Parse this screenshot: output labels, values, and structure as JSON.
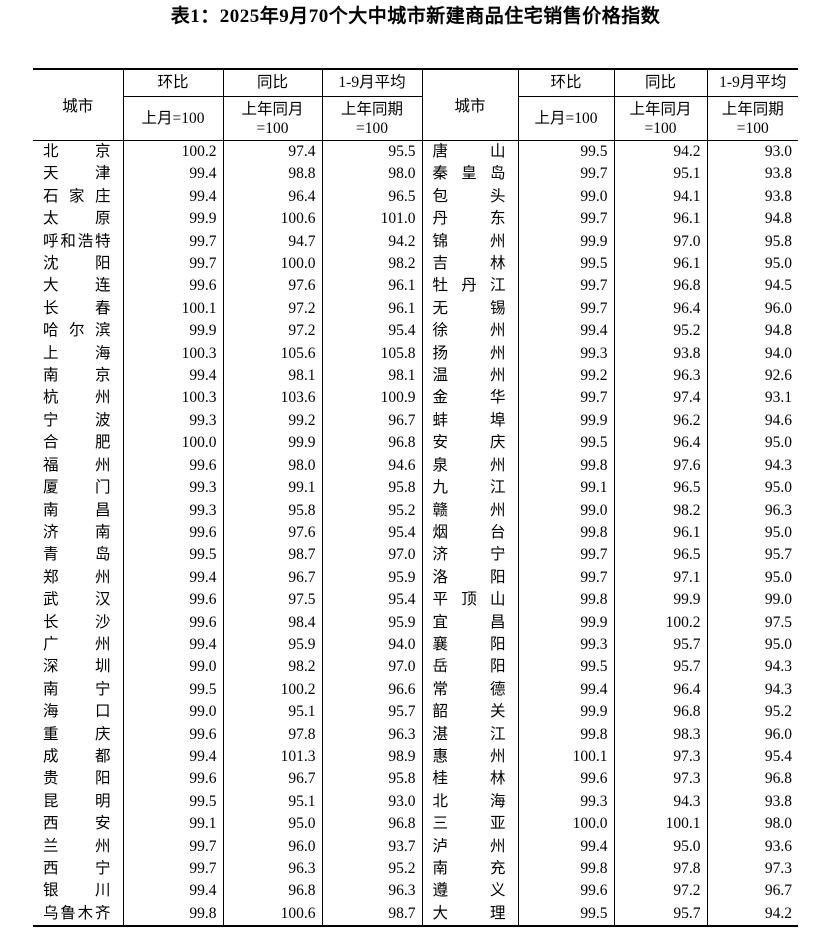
{
  "page": {
    "title": "表1：2025年9月70个大中城市新建商品住宅销售价格指数"
  },
  "table": {
    "header": {
      "city_label": "城市",
      "columns": [
        {
          "group": "环比",
          "base_line1": "上月=100",
          "base_line2": ""
        },
        {
          "group": "同比",
          "base_line1": "上年同月",
          "base_line2": "=100"
        },
        {
          "group": "1-9月平均",
          "base_line1": "上年同期",
          "base_line2": "=100"
        }
      ]
    },
    "left_rows": [
      {
        "city": "北京",
        "mom": "100.2",
        "yoy": "97.4",
        "avg": "95.5"
      },
      {
        "city": "天津",
        "mom": "99.4",
        "yoy": "98.8",
        "avg": "98.0"
      },
      {
        "city": "石家庄",
        "mom": "99.4",
        "yoy": "96.4",
        "avg": "96.5"
      },
      {
        "city": "太原",
        "mom": "99.9",
        "yoy": "100.6",
        "avg": "101.0"
      },
      {
        "city": "呼和浩特",
        "mom": "99.7",
        "yoy": "94.7",
        "avg": "94.2"
      },
      {
        "city": "沈阳",
        "mom": "99.7",
        "yoy": "100.0",
        "avg": "98.2"
      },
      {
        "city": "大连",
        "mom": "99.6",
        "yoy": "97.6",
        "avg": "96.1"
      },
      {
        "city": "长春",
        "mom": "100.1",
        "yoy": "97.2",
        "avg": "96.1"
      },
      {
        "city": "哈尔滨",
        "mom": "99.9",
        "yoy": "97.2",
        "avg": "95.4"
      },
      {
        "city": "上海",
        "mom": "100.3",
        "yoy": "105.6",
        "avg": "105.8"
      },
      {
        "city": "南京",
        "mom": "99.4",
        "yoy": "98.1",
        "avg": "98.1"
      },
      {
        "city": "杭州",
        "mom": "100.3",
        "yoy": "103.6",
        "avg": "100.9"
      },
      {
        "city": "宁波",
        "mom": "99.3",
        "yoy": "99.2",
        "avg": "96.7"
      },
      {
        "city": "合肥",
        "mom": "100.0",
        "yoy": "99.9",
        "avg": "96.8"
      },
      {
        "city": "福州",
        "mom": "99.6",
        "yoy": "98.0",
        "avg": "94.6"
      },
      {
        "city": "厦门",
        "mom": "99.3",
        "yoy": "99.1",
        "avg": "95.8"
      },
      {
        "city": "南昌",
        "mom": "99.3",
        "yoy": "95.8",
        "avg": "95.2"
      },
      {
        "city": "济南",
        "mom": "99.6",
        "yoy": "97.6",
        "avg": "95.4"
      },
      {
        "city": "青岛",
        "mom": "99.5",
        "yoy": "98.7",
        "avg": "97.0"
      },
      {
        "city": "郑州",
        "mom": "99.4",
        "yoy": "96.7",
        "avg": "95.9"
      },
      {
        "city": "武汉",
        "mom": "99.6",
        "yoy": "97.5",
        "avg": "95.4"
      },
      {
        "city": "长沙",
        "mom": "99.6",
        "yoy": "98.4",
        "avg": "95.9"
      },
      {
        "city": "广州",
        "mom": "99.4",
        "yoy": "95.9",
        "avg": "94.0"
      },
      {
        "city": "深圳",
        "mom": "99.0",
        "yoy": "98.2",
        "avg": "97.0"
      },
      {
        "city": "南宁",
        "mom": "99.5",
        "yoy": "100.2",
        "avg": "96.6"
      },
      {
        "city": "海口",
        "mom": "99.0",
        "yoy": "95.1",
        "avg": "95.7"
      },
      {
        "city": "重庆",
        "mom": "99.6",
        "yoy": "97.8",
        "avg": "96.3"
      },
      {
        "city": "成都",
        "mom": "99.4",
        "yoy": "101.3",
        "avg": "98.9"
      },
      {
        "city": "贵阳",
        "mom": "99.6",
        "yoy": "96.7",
        "avg": "95.8"
      },
      {
        "city": "昆明",
        "mom": "99.5",
        "yoy": "95.1",
        "avg": "93.0"
      },
      {
        "city": "西安",
        "mom": "99.1",
        "yoy": "95.0",
        "avg": "96.8"
      },
      {
        "city": "兰州",
        "mom": "99.7",
        "yoy": "96.0",
        "avg": "93.7"
      },
      {
        "city": "西宁",
        "mom": "99.7",
        "yoy": "96.3",
        "avg": "95.2"
      },
      {
        "city": "银川",
        "mom": "99.4",
        "yoy": "96.8",
        "avg": "96.3"
      },
      {
        "city": "乌鲁木齐",
        "mom": "99.8",
        "yoy": "100.6",
        "avg": "98.7"
      }
    ],
    "right_rows": [
      {
        "city": "唐山",
        "mom": "99.5",
        "yoy": "94.2",
        "avg": "93.0"
      },
      {
        "city": "秦皇岛",
        "mom": "99.7",
        "yoy": "95.1",
        "avg": "93.8"
      },
      {
        "city": "包头",
        "mom": "99.0",
        "yoy": "94.1",
        "avg": "93.8"
      },
      {
        "city": "丹东",
        "mom": "99.7",
        "yoy": "96.1",
        "avg": "94.8"
      },
      {
        "city": "锦州",
        "mom": "99.9",
        "yoy": "97.0",
        "avg": "95.8"
      },
      {
        "city": "吉林",
        "mom": "99.5",
        "yoy": "96.1",
        "avg": "95.0"
      },
      {
        "city": "牡丹江",
        "mom": "99.7",
        "yoy": "96.8",
        "avg": "94.5"
      },
      {
        "city": "无锡",
        "mom": "99.7",
        "yoy": "96.4",
        "avg": "96.0"
      },
      {
        "city": "徐州",
        "mom": "99.4",
        "yoy": "95.2",
        "avg": "94.8"
      },
      {
        "city": "扬州",
        "mom": "99.3",
        "yoy": "93.8",
        "avg": "94.0"
      },
      {
        "city": "温州",
        "mom": "99.2",
        "yoy": "96.3",
        "avg": "92.6"
      },
      {
        "city": "金华",
        "mom": "99.7",
        "yoy": "97.4",
        "avg": "93.1"
      },
      {
        "city": "蚌埠",
        "mom": "99.9",
        "yoy": "96.2",
        "avg": "94.6"
      },
      {
        "city": "安庆",
        "mom": "99.5",
        "yoy": "96.4",
        "avg": "95.0"
      },
      {
        "city": "泉州",
        "mom": "99.8",
        "yoy": "97.6",
        "avg": "94.3"
      },
      {
        "city": "九江",
        "mom": "99.1",
        "yoy": "96.5",
        "avg": "95.0"
      },
      {
        "city": "赣州",
        "mom": "99.0",
        "yoy": "98.2",
        "avg": "96.3"
      },
      {
        "city": "烟台",
        "mom": "99.8",
        "yoy": "96.1",
        "avg": "95.0"
      },
      {
        "city": "济宁",
        "mom": "99.7",
        "yoy": "96.5",
        "avg": "95.7"
      },
      {
        "city": "洛阳",
        "mom": "99.7",
        "yoy": "97.1",
        "avg": "95.0"
      },
      {
        "city": "平顶山",
        "mom": "99.8",
        "yoy": "99.9",
        "avg": "99.0"
      },
      {
        "city": "宜昌",
        "mom": "99.9",
        "yoy": "100.2",
        "avg": "97.5"
      },
      {
        "city": "襄阳",
        "mom": "99.3",
        "yoy": "95.7",
        "avg": "95.0"
      },
      {
        "city": "岳阳",
        "mom": "99.5",
        "yoy": "95.7",
        "avg": "94.3"
      },
      {
        "city": "常德",
        "mom": "99.4",
        "yoy": "96.4",
        "avg": "94.3"
      },
      {
        "city": "韶关",
        "mom": "99.9",
        "yoy": "96.8",
        "avg": "95.2"
      },
      {
        "city": "湛江",
        "mom": "99.8",
        "yoy": "98.3",
        "avg": "96.0"
      },
      {
        "city": "惠州",
        "mom": "100.1",
        "yoy": "97.3",
        "avg": "95.4"
      },
      {
        "city": "桂林",
        "mom": "99.6",
        "yoy": "97.3",
        "avg": "96.8"
      },
      {
        "city": "北海",
        "mom": "99.3",
        "yoy": "94.3",
        "avg": "93.8"
      },
      {
        "city": "三亚",
        "mom": "100.0",
        "yoy": "100.1",
        "avg": "98.0"
      },
      {
        "city": "泸州",
        "mom": "99.4",
        "yoy": "95.0",
        "avg": "93.6"
      },
      {
        "city": "南充",
        "mom": "99.8",
        "yoy": "97.8",
        "avg": "97.3"
      },
      {
        "city": "遵义",
        "mom": "99.6",
        "yoy": "97.2",
        "avg": "96.7"
      },
      {
        "city": "大理",
        "mom": "99.5",
        "yoy": "95.7",
        "avg": "94.2"
      }
    ]
  }
}
